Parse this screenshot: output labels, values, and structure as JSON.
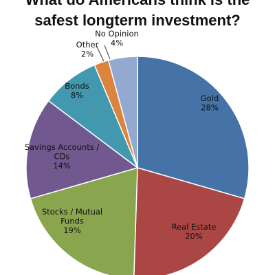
{
  "chart_data": {
    "type": "pie",
    "title_lines": [
      "What do Americans think is the",
      "safest longterm investment?"
    ],
    "slices": [
      {
        "name": "Gold",
        "label_lines": [
          "Gold",
          "28%"
        ],
        "value": 28,
        "color": "#4572A7"
      },
      {
        "name": "Real Estate",
        "label_lines": [
          "Real Estate",
          "20%"
        ],
        "value": 20,
        "color": "#AA4643"
      },
      {
        "name": "Stocks / Mutual Funds",
        "label_lines": [
          "Stocks / Mutual",
          "Funds",
          "19%"
        ],
        "value": 19,
        "color": "#89A54E"
      },
      {
        "name": "Savings Accounts / CDs",
        "label_lines": [
          "Savings Accounts /",
          "CDs",
          "14%"
        ],
        "value": 14,
        "color": "#71588F"
      },
      {
        "name": "Bonds",
        "label_lines": [
          "Bonds",
          "8%"
        ],
        "value": 8,
        "color": "#4198AF"
      },
      {
        "name": "Other",
        "label_lines": [
          "Other",
          "2%"
        ],
        "value": 2,
        "color": "#DB843D"
      },
      {
        "name": "No Opinion",
        "label_lines": [
          "No Opinion",
          "4%"
        ],
        "value": 4,
        "color": "#93A9CF"
      }
    ],
    "start_angle": "12 o'clock",
    "direction": "clockwise",
    "legend": "none"
  }
}
